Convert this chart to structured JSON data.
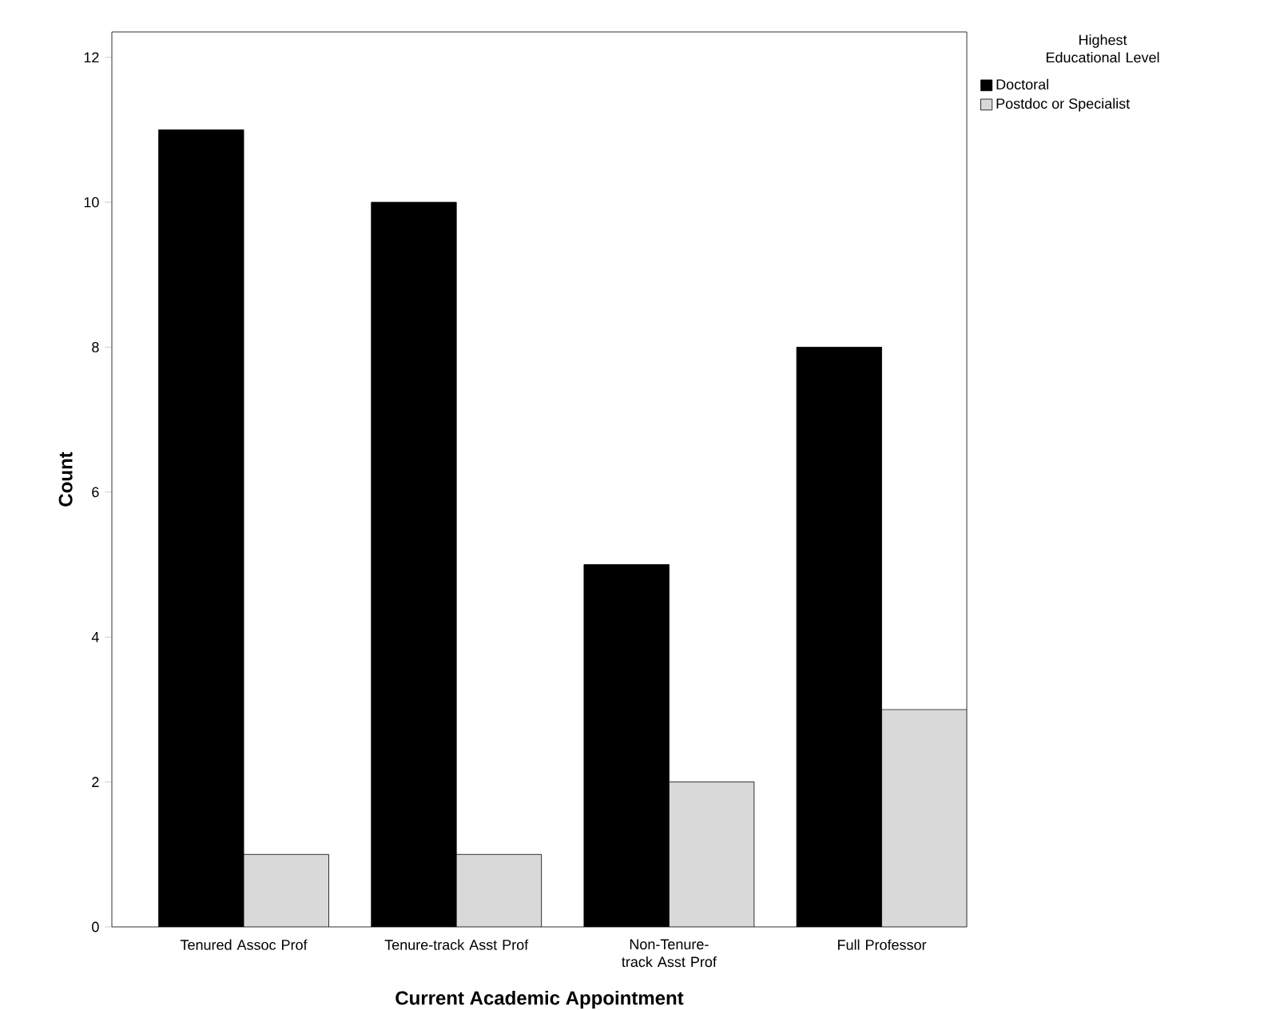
{
  "chart_data": {
    "type": "bar",
    "xlabel": "Current Academic Appointment",
    "ylabel": "Count",
    "legend_title": "Highest Educational Level",
    "categories": [
      "Tenured Assoc Prof",
      "Tenure-track Asst Prof",
      "Non-Tenure-track Asst Prof",
      "Full Professor"
    ],
    "series": [
      {
        "name": "Doctoral",
        "color": "#000000",
        "values": [
          11,
          10,
          5,
          8
        ]
      },
      {
        "name": "Postdoc or Specialist",
        "color": "#d9d9d9",
        "values": [
          1,
          1,
          2,
          3
        ]
      }
    ],
    "ylim": [
      0,
      12.35
    ],
    "yticks": [
      0,
      2,
      4,
      6,
      8,
      10,
      12
    ],
    "grid": false,
    "legend": "top right"
  }
}
